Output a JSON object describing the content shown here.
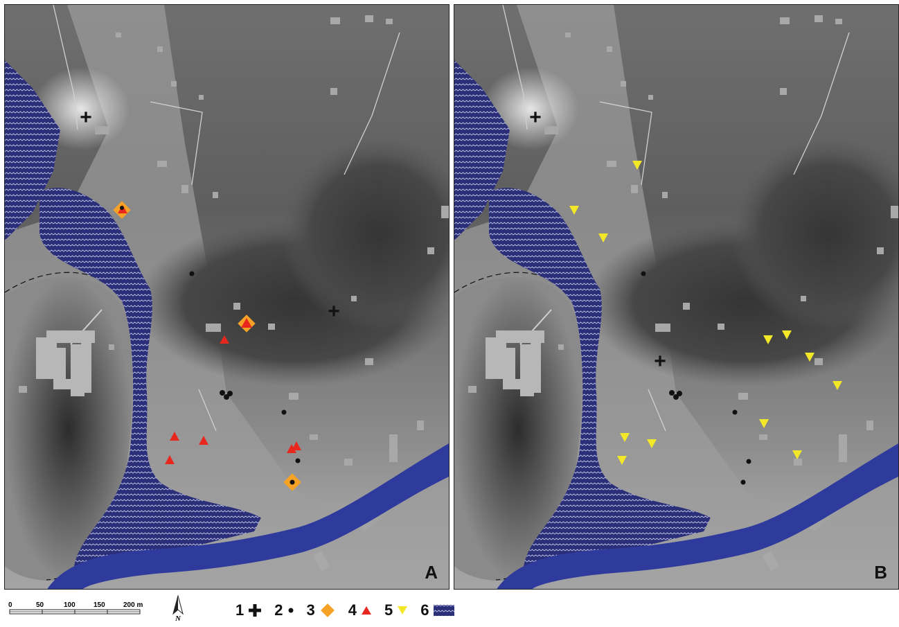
{
  "panels": [
    {
      "id": "A",
      "label": "A"
    },
    {
      "id": "B",
      "label": "B"
    }
  ],
  "scale": {
    "ticks": [
      "0",
      "50",
      "100",
      "150",
      "200 m"
    ]
  },
  "north": {
    "label": "N"
  },
  "legend": [
    {
      "num": "1",
      "symbol": "cross-icon",
      "color": "#111111"
    },
    {
      "num": "2",
      "symbol": "dot-icon",
      "color": "#111111"
    },
    {
      "num": "3",
      "symbol": "diamond-icon",
      "color": "#F6A227"
    },
    {
      "num": "4",
      "symbol": "triangle-up-icon",
      "color": "#E8281E"
    },
    {
      "num": "5",
      "symbol": "triangle-down-icon",
      "color": "#F3E827"
    },
    {
      "num": "6",
      "symbol": "water-hatch-icon",
      "color": "#2B2F7A"
    }
  ],
  "colors": {
    "river": "#2E3A9C",
    "marsh": "#2B2F7A",
    "terrain_dark": "#3a3a3a",
    "terrain_light": "#b9b9b9",
    "buildings": "#a8a8a8"
  }
}
